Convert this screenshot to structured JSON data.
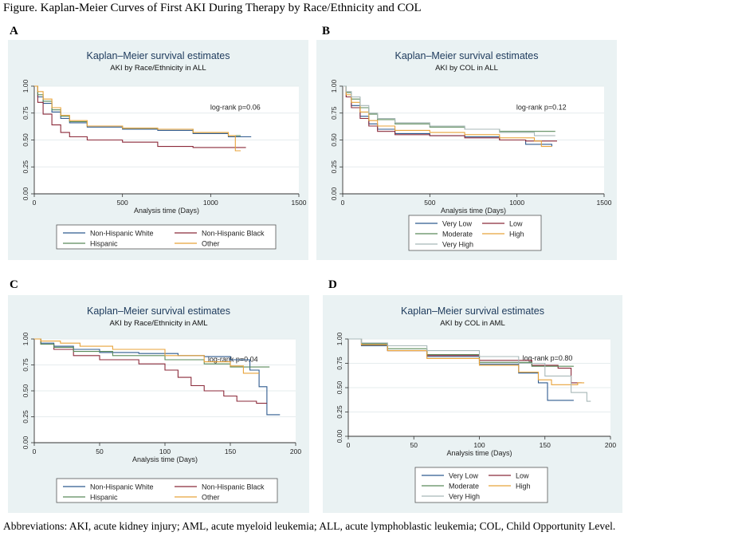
{
  "figure": {
    "title": "Figure. Kaplan-Meier Curves of First AKI During Therapy by Race/Ethnicity and COL",
    "footnote": "Abbreviations: AKI, acute kidney injury; AML, acute myeloid leukemia; ALL, acute lymphoblastic leukemia; COL, Child Opportunity Level."
  },
  "chart_data": [
    {
      "panel": "A",
      "type": "line",
      "step": true,
      "title": "Kaplan–Meier survival estimates",
      "subtitle": "AKI by Race/Ethnicity in ALL",
      "xlabel": "Analysis time (Days)",
      "ylabel": "",
      "xlim": [
        0,
        1500
      ],
      "ylim": [
        0,
        1
      ],
      "xticks": [
        "0",
        "500",
        "1000",
        "1500"
      ],
      "yticks": [
        "0.00",
        "0.25",
        "0.50",
        "0.75",
        "1.00"
      ],
      "annotation": "log-rank p=0.06",
      "legend_position": "bottom",
      "series": [
        {
          "name": "Non-Hispanic White",
          "color": "#2f5b8f",
          "points": [
            [
              0,
              1
            ],
            [
              20,
              0.9
            ],
            [
              50,
              0.84
            ],
            [
              100,
              0.76
            ],
            [
              150,
              0.7
            ],
            [
              200,
              0.66
            ],
            [
              300,
              0.62
            ],
            [
              500,
              0.6
            ],
            [
              700,
              0.59
            ],
            [
              900,
              0.56
            ],
            [
              1100,
              0.53
            ],
            [
              1230,
              0.53
            ]
          ]
        },
        {
          "name": "Non-Hispanic Black",
          "color": "#8b2a3a",
          "points": [
            [
              0,
              1
            ],
            [
              20,
              0.85
            ],
            [
              50,
              0.74
            ],
            [
              100,
              0.64
            ],
            [
              150,
              0.57
            ],
            [
              200,
              0.53
            ],
            [
              300,
              0.5
            ],
            [
              500,
              0.48
            ],
            [
              700,
              0.44
            ],
            [
              900,
              0.43
            ],
            [
              1050,
              0.43
            ],
            [
              1200,
              0.43
            ]
          ]
        },
        {
          "name": "Hispanic",
          "color": "#5a8a5a",
          "points": [
            [
              0,
              1
            ],
            [
              20,
              0.92
            ],
            [
              50,
              0.86
            ],
            [
              100,
              0.78
            ],
            [
              150,
              0.72
            ],
            [
              200,
              0.67
            ],
            [
              300,
              0.63
            ],
            [
              500,
              0.61
            ],
            [
              700,
              0.6
            ],
            [
              900,
              0.57
            ],
            [
              1100,
              0.54
            ],
            [
              1170,
              0.54
            ]
          ]
        },
        {
          "name": "Other",
          "color": "#e8a33a",
          "points": [
            [
              0,
              1
            ],
            [
              20,
              0.95
            ],
            [
              50,
              0.88
            ],
            [
              100,
              0.8
            ],
            [
              150,
              0.73
            ],
            [
              200,
              0.68
            ],
            [
              300,
              0.63
            ],
            [
              500,
              0.61
            ],
            [
              700,
              0.6
            ],
            [
              900,
              0.57
            ],
            [
              1100,
              0.54
            ],
            [
              1140,
              0.4
            ],
            [
              1170,
              0.4
            ]
          ]
        }
      ]
    },
    {
      "panel": "B",
      "type": "line",
      "step": true,
      "title": "Kaplan–Meier survival estimates",
      "subtitle": "AKI by COL in ALL",
      "xlabel": "Analysis time (Days)",
      "ylabel": "",
      "xlim": [
        0,
        1500
      ],
      "ylim": [
        0,
        1
      ],
      "xticks": [
        "0",
        "500",
        "1000",
        "1500"
      ],
      "yticks": [
        "0.00",
        "0.25",
        "0.50",
        "0.75",
        "1.00"
      ],
      "annotation": "log-rank p=0.12",
      "legend_position": "bottom",
      "series": [
        {
          "name": "Very Low",
          "color": "#2f5b8f",
          "points": [
            [
              0,
              1
            ],
            [
              20,
              0.9
            ],
            [
              50,
              0.82
            ],
            [
              100,
              0.72
            ],
            [
              150,
              0.65
            ],
            [
              200,
              0.6
            ],
            [
              300,
              0.56
            ],
            [
              500,
              0.54
            ],
            [
              700,
              0.53
            ],
            [
              900,
              0.5
            ],
            [
              1050,
              0.46
            ],
            [
              1200,
              0.44
            ]
          ]
        },
        {
          "name": "Low",
          "color": "#8b2a3a",
          "points": [
            [
              0,
              1
            ],
            [
              20,
              0.9
            ],
            [
              50,
              0.8
            ],
            [
              100,
              0.7
            ],
            [
              150,
              0.63
            ],
            [
              200,
              0.58
            ],
            [
              300,
              0.55
            ],
            [
              500,
              0.54
            ],
            [
              700,
              0.52
            ],
            [
              900,
              0.5
            ],
            [
              1050,
              0.49
            ],
            [
              1230,
              0.49
            ]
          ]
        },
        {
          "name": "Moderate",
          "color": "#5a8a5a",
          "points": [
            [
              0,
              1
            ],
            [
              20,
              0.94
            ],
            [
              50,
              0.88
            ],
            [
              100,
              0.8
            ],
            [
              150,
              0.74
            ],
            [
              200,
              0.69
            ],
            [
              300,
              0.65
            ],
            [
              500,
              0.62
            ],
            [
              700,
              0.6
            ],
            [
              900,
              0.58
            ],
            [
              1100,
              0.58
            ],
            [
              1220,
              0.58
            ]
          ]
        },
        {
          "name": "High",
          "color": "#e8a33a",
          "points": [
            [
              0,
              1
            ],
            [
              20,
              0.92
            ],
            [
              50,
              0.85
            ],
            [
              100,
              0.76
            ],
            [
              150,
              0.68
            ],
            [
              200,
              0.63
            ],
            [
              300,
              0.59
            ],
            [
              500,
              0.57
            ],
            [
              700,
              0.55
            ],
            [
              900,
              0.52
            ],
            [
              1100,
              0.49
            ],
            [
              1140,
              0.44
            ],
            [
              1200,
              0.44
            ]
          ]
        },
        {
          "name": "Very High",
          "color": "#a8b8b8",
          "points": [
            [
              0,
              1
            ],
            [
              20,
              0.95
            ],
            [
              50,
              0.9
            ],
            [
              100,
              0.82
            ],
            [
              150,
              0.75
            ],
            [
              200,
              0.7
            ],
            [
              300,
              0.66
            ],
            [
              500,
              0.63
            ],
            [
              700,
              0.6
            ],
            [
              900,
              0.57
            ],
            [
              1100,
              0.54
            ],
            [
              1220,
              0.54
            ]
          ]
        }
      ]
    },
    {
      "panel": "C",
      "type": "line",
      "step": true,
      "title": "Kaplan–Meier survival estimates",
      "subtitle": "AKI by Race/Ethnicity in AML",
      "xlabel": "Analysis time (Days)",
      "ylabel": "",
      "xlim": [
        0,
        200
      ],
      "ylim": [
        0,
        1
      ],
      "xticks": [
        "0",
        "50",
        "100",
        "150",
        "200"
      ],
      "yticks": [
        "0.00",
        "0.25",
        "0.50",
        "0.75",
        "1.00"
      ],
      "annotation": "log-rank p=0.04",
      "legend_position": "bottom",
      "series": [
        {
          "name": "Non-Hispanic White",
          "color": "#2f5b8f",
          "points": [
            [
              0,
              1
            ],
            [
              5,
              0.96
            ],
            [
              15,
              0.93
            ],
            [
              30,
              0.9
            ],
            [
              50,
              0.87
            ],
            [
              80,
              0.86
            ],
            [
              110,
              0.84
            ],
            [
              130,
              0.83
            ],
            [
              150,
              0.8
            ],
            [
              165,
              0.7
            ],
            [
              172,
              0.54
            ],
            [
              178,
              0.27
            ],
            [
              188,
              0.27
            ]
          ]
        },
        {
          "name": "Non-Hispanic Black",
          "color": "#8b2a3a",
          "points": [
            [
              0,
              1
            ],
            [
              5,
              0.95
            ],
            [
              15,
              0.9
            ],
            [
              30,
              0.84
            ],
            [
              50,
              0.8
            ],
            [
              80,
              0.76
            ],
            [
              100,
              0.7
            ],
            [
              110,
              0.63
            ],
            [
              120,
              0.55
            ],
            [
              130,
              0.5
            ],
            [
              145,
              0.45
            ],
            [
              155,
              0.4
            ],
            [
              170,
              0.38
            ],
            [
              178,
              0.38
            ]
          ]
        },
        {
          "name": "Hispanic",
          "color": "#5a8a5a",
          "points": [
            [
              0,
              1
            ],
            [
              5,
              0.95
            ],
            [
              15,
              0.92
            ],
            [
              30,
              0.88
            ],
            [
              60,
              0.84
            ],
            [
              100,
              0.8
            ],
            [
              130,
              0.76
            ],
            [
              150,
              0.73
            ],
            [
              180,
              0.73
            ]
          ]
        },
        {
          "name": "Other",
          "color": "#e8a33a",
          "points": [
            [
              0,
              1
            ],
            [
              5,
              0.98
            ],
            [
              20,
              0.96
            ],
            [
              35,
              0.93
            ],
            [
              60,
              0.9
            ],
            [
              100,
              0.84
            ],
            [
              130,
              0.78
            ],
            [
              150,
              0.74
            ],
            [
              160,
              0.67
            ],
            [
              172,
              0.67
            ]
          ]
        }
      ]
    },
    {
      "panel": "D",
      "type": "line",
      "step": true,
      "title": "Kaplan–Meier survival estimates",
      "subtitle": "AKI by COL in AML",
      "xlabel": "Analysis time (Days)",
      "ylabel": "",
      "xlim": [
        0,
        200
      ],
      "ylim": [
        0,
        1
      ],
      "xticks": [
        "0",
        "50",
        "100",
        "150",
        "200"
      ],
      "yticks": [
        "0.00",
        "0.25",
        "0.50",
        "0.75",
        "1.00"
      ],
      "annotation": "log-rank p=0.80",
      "legend_position": "bottom",
      "series": [
        {
          "name": "Very Low",
          "color": "#2f5b8f",
          "points": [
            [
              0,
              1
            ],
            [
              10,
              0.93
            ],
            [
              30,
              0.88
            ],
            [
              60,
              0.82
            ],
            [
              100,
              0.74
            ],
            [
              130,
              0.65
            ],
            [
              145,
              0.55
            ],
            [
              152,
              0.37
            ],
            [
              172,
              0.37
            ]
          ]
        },
        {
          "name": "Low",
          "color": "#8b2a3a",
          "points": [
            [
              0,
              1
            ],
            [
              10,
              0.94
            ],
            [
              30,
              0.88
            ],
            [
              60,
              0.83
            ],
            [
              100,
              0.78
            ],
            [
              140,
              0.73
            ],
            [
              160,
              0.7
            ],
            [
              170,
              0.55
            ],
            [
              178,
              0.55
            ]
          ]
        },
        {
          "name": "Moderate",
          "color": "#5a8a5a",
          "points": [
            [
              0,
              1
            ],
            [
              10,
              0.95
            ],
            [
              30,
              0.9
            ],
            [
              60,
              0.84
            ],
            [
              100,
              0.76
            ],
            [
              140,
              0.72
            ],
            [
              165,
              0.72
            ],
            [
              172,
              0.72
            ]
          ]
        },
        {
          "name": "High",
          "color": "#e8a33a",
          "points": [
            [
              0,
              1
            ],
            [
              10,
              0.94
            ],
            [
              30,
              0.88
            ],
            [
              60,
              0.8
            ],
            [
              100,
              0.73
            ],
            [
              130,
              0.66
            ],
            [
              145,
              0.58
            ],
            [
              155,
              0.53
            ],
            [
              175,
              0.55
            ],
            [
              180,
              0.55
            ]
          ]
        },
        {
          "name": "Very High",
          "color": "#a8b8b8",
          "points": [
            [
              0,
              1
            ],
            [
              10,
              0.96
            ],
            [
              30,
              0.93
            ],
            [
              60,
              0.88
            ],
            [
              100,
              0.82
            ],
            [
              130,
              0.75
            ],
            [
              150,
              0.62
            ],
            [
              170,
              0.45
            ],
            [
              182,
              0.36
            ],
            [
              185,
              0.36
            ]
          ]
        }
      ]
    }
  ]
}
